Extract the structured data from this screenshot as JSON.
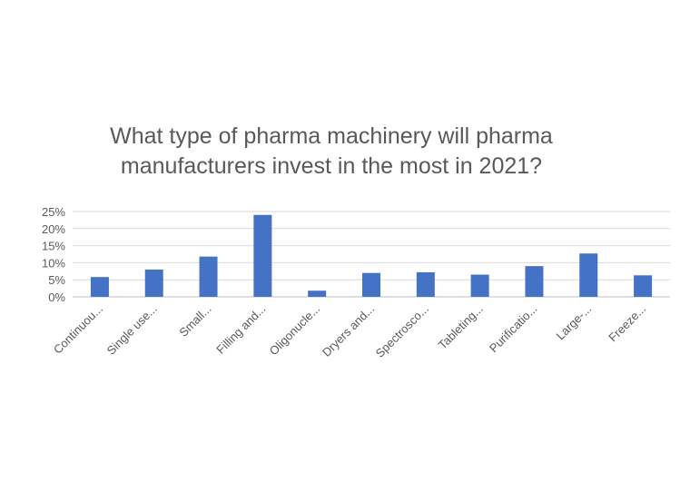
{
  "chart_data": {
    "type": "bar",
    "title_lines": [
      "What type of pharma machinery will pharma",
      "manufacturers invest in the most in 2021?"
    ],
    "categories": [
      "Continuou...",
      "Single use...",
      "Small...",
      "Filling and...",
      "Oligonucle...",
      "Dryers and...",
      "Spectrosco...",
      "Tableting...",
      "Purificatio...",
      "Large-...",
      "Freeze..."
    ],
    "values": [
      5.8,
      8.0,
      11.8,
      24.0,
      1.8,
      7.0,
      7.2,
      6.5,
      9.0,
      12.7,
      6.3
    ],
    "ylim": [
      0,
      25
    ],
    "yticks": [
      "0%",
      "5%",
      "10%",
      "15%",
      "20%",
      "25%"
    ],
    "ytick_values": [
      0,
      5,
      10,
      15,
      20,
      25
    ],
    "grid": true,
    "bar_color": "#4472c4"
  }
}
